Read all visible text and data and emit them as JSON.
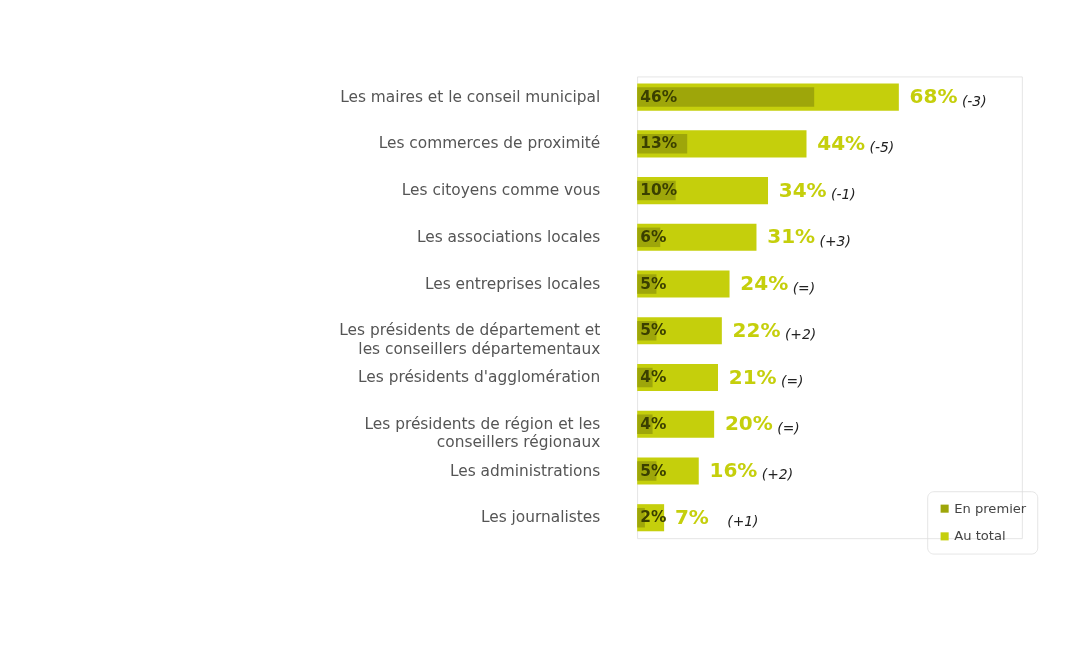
{
  "chart_data": {
    "type": "bar",
    "orientation": "horizontal",
    "categories": [
      "Les maires et le conseil municipal",
      "Les commerces de proximité",
      "Les citoyens comme vous",
      "Les associations locales",
      "Les entreprises locales",
      "Les présidents de département et les conseillers départementaux",
      "Les présidents d'agglomération",
      "Les présidents de région et les conseillers régionaux",
      "Les administrations",
      "Les journalistes"
    ],
    "series": [
      {
        "name": "En premier",
        "color": "#9ea60a",
        "values": [
          46,
          13,
          10,
          6,
          5,
          5,
          4,
          4,
          5,
          2
        ],
        "value_labels": [
          "46%",
          "13%",
          "10%",
          "6%",
          "5%",
          "5%",
          "4%",
          "4%",
          "5%",
          "2%"
        ]
      },
      {
        "name": "Au total",
        "color": "#c5cf0c",
        "values": [
          68,
          44,
          34,
          31,
          24,
          22,
          21,
          20,
          16,
          7
        ],
        "value_labels": [
          "68%",
          "44%",
          "34%",
          "31%",
          "24%",
          "22%",
          "21%",
          "20%",
          "16%",
          "7%"
        ]
      }
    ],
    "xlim": [
      0,
      100
    ],
    "legend": "bottom right",
    "annotations": [
      "(-3)",
      "(-5)",
      "(-1)",
      "(+3)",
      "(=)",
      "(+2)",
      "(=)",
      "(=)",
      "(+2)",
      "(+1)"
    ]
  }
}
